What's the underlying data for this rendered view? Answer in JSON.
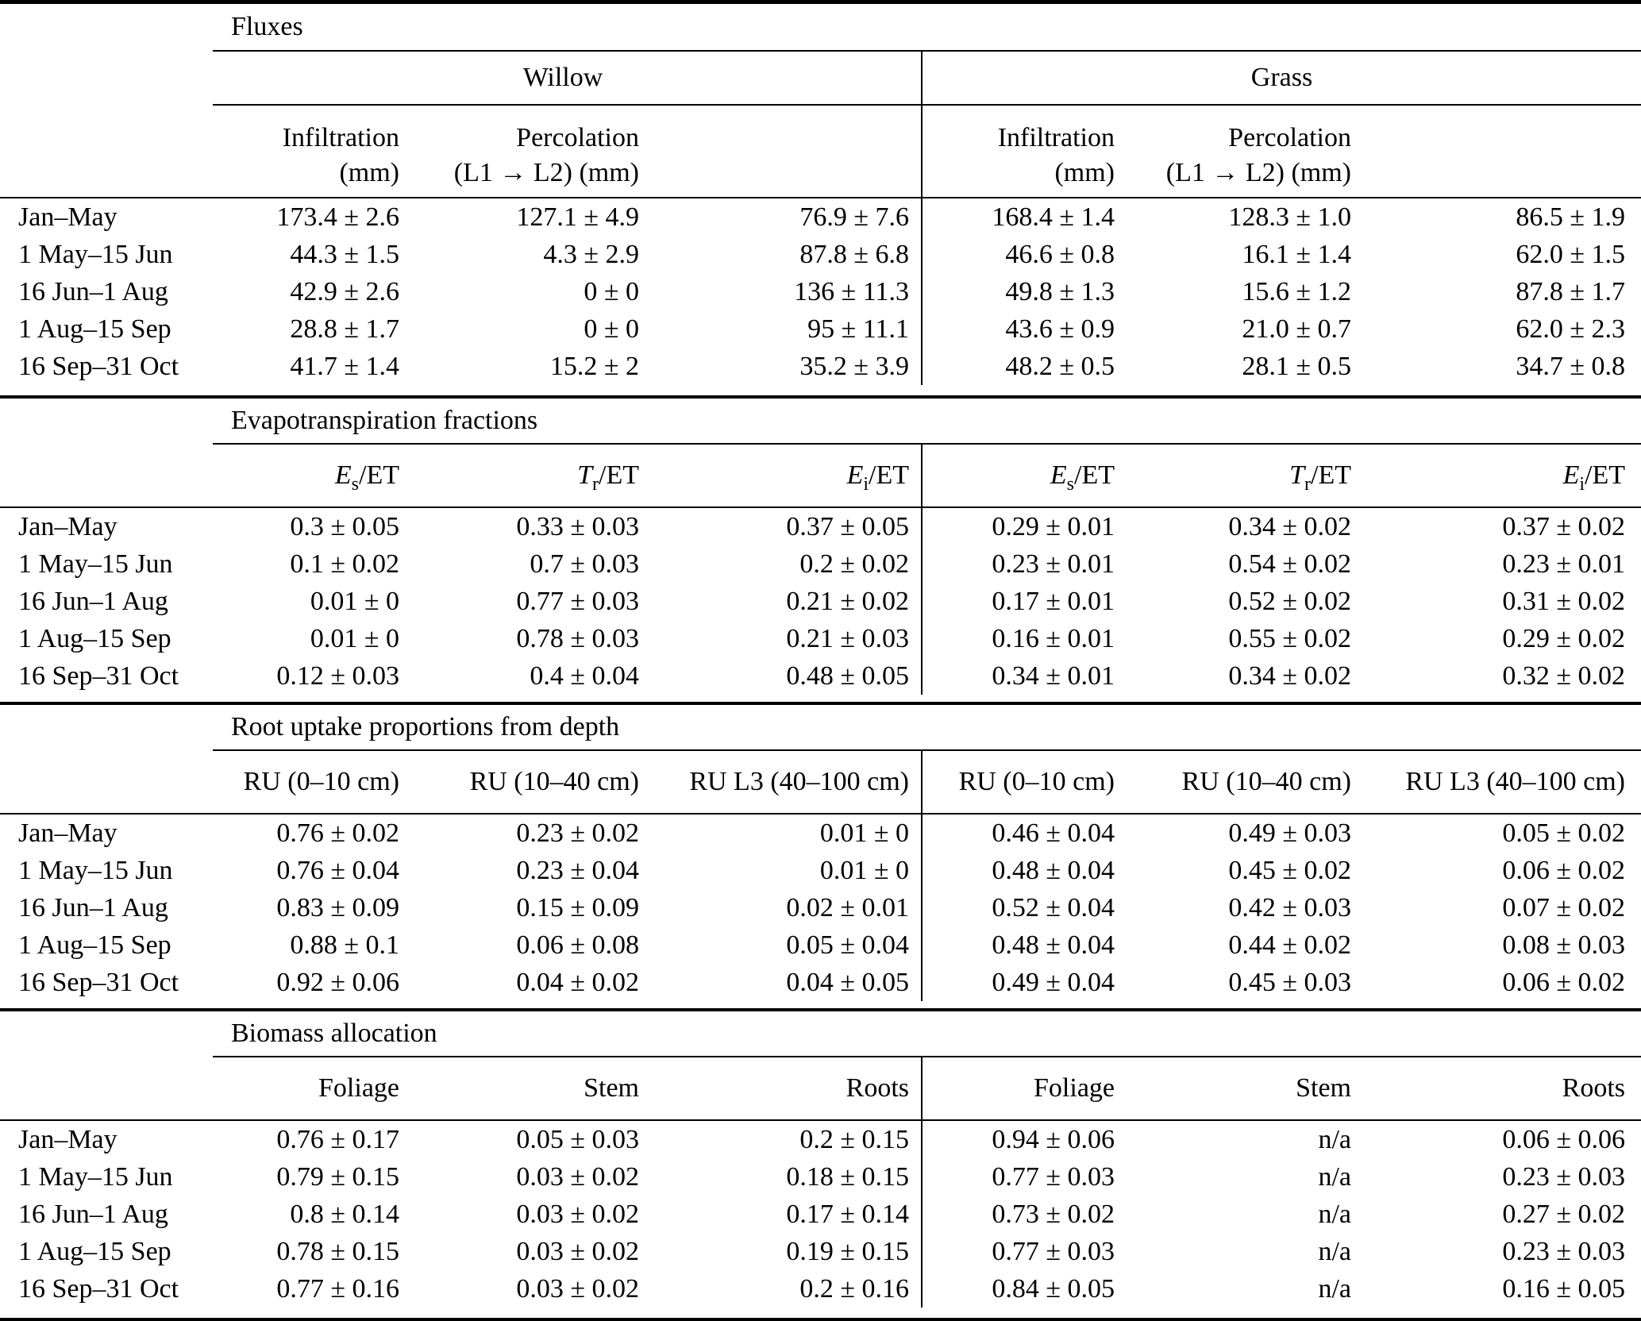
{
  "table": {
    "colors": {
      "text": "#000000",
      "background": "#ffffff",
      "rule": "#000000"
    },
    "group_headers": {
      "willow": "Willow",
      "grass": "Grass"
    },
    "row_labels": [
      "Jan–May",
      "1 May–15 Jun",
      "16 Jun–1 Aug",
      "1 Aug–15 Sep",
      "16 Sep–31 Oct"
    ],
    "sections": [
      {
        "title": "Fluxes",
        "headers": {
          "willow": [
            "Infiltration\n(mm)",
            "Percolation\n(L1 → L2) (mm)",
            ""
          ],
          "grass": [
            "Infiltration\n(mm)",
            "Percolation\n(L1 → L2) (mm)",
            ""
          ]
        },
        "rows": [
          {
            "label": "Jan–May",
            "willow": [
              "173.4 ± 2.6",
              "127.1 ± 4.9",
              "76.9 ± 7.6"
            ],
            "grass": [
              "168.4 ± 1.4",
              "128.3 ± 1.0",
              "86.5 ± 1.9"
            ]
          },
          {
            "label": "1 May–15 Jun",
            "willow": [
              "44.3 ± 1.5",
              "4.3 ± 2.9",
              "87.8 ± 6.8"
            ],
            "grass": [
              "46.6 ± 0.8",
              "16.1 ± 1.4",
              "62.0 ± 1.5"
            ]
          },
          {
            "label": "16 Jun–1 Aug",
            "willow": [
              "42.9 ± 2.6",
              "0 ± 0",
              "136 ± 11.3"
            ],
            "grass": [
              "49.8 ± 1.3",
              "15.6 ± 1.2",
              "87.8 ± 1.7"
            ]
          },
          {
            "label": "1 Aug–15 Sep",
            "willow": [
              "28.8 ± 1.7",
              "0 ± 0",
              "95 ± 11.1"
            ],
            "grass": [
              "43.6 ± 0.9",
              "21.0 ± 0.7",
              "62.0 ± 2.3"
            ]
          },
          {
            "label": "16 Sep–31 Oct",
            "willow": [
              "41.7 ± 1.4",
              "15.2 ± 2",
              "35.2 ± 3.9"
            ],
            "grass": [
              "48.2 ± 0.5",
              "28.1 ± 0.5",
              "34.7 ± 0.8"
            ]
          }
        ]
      },
      {
        "title": "Evapotranspiration fractions",
        "math_headers": [
          {
            "var": "E",
            "sub": "s",
            "rest": "/ET"
          },
          {
            "var": "T",
            "sub": "r",
            "rest": "/ET"
          },
          {
            "var": "E",
            "sub": "i",
            "rest": "/ET"
          }
        ],
        "rows": [
          {
            "label": "Jan–May",
            "willow": [
              "0.3 ± 0.05",
              "0.33 ± 0.03",
              "0.37 ± 0.05"
            ],
            "grass": [
              "0.29 ± 0.01",
              "0.34 ± 0.02",
              "0.37 ± 0.02"
            ]
          },
          {
            "label": "1 May–15 Jun",
            "willow": [
              "0.1 ± 0.02",
              "0.7 ± 0.03",
              "0.2 ± 0.02"
            ],
            "grass": [
              "0.23 ± 0.01",
              "0.54 ± 0.02",
              "0.23 ± 0.01"
            ]
          },
          {
            "label": "16 Jun–1 Aug",
            "willow": [
              "0.01 ± 0",
              "0.77 ± 0.03",
              "0.21 ± 0.02"
            ],
            "grass": [
              "0.17 ± 0.01",
              "0.52 ± 0.02",
              "0.31 ± 0.02"
            ]
          },
          {
            "label": "1 Aug–15 Sep",
            "willow": [
              "0.01 ± 0",
              "0.78 ± 0.03",
              "0.21 ± 0.03"
            ],
            "grass": [
              "0.16 ± 0.01",
              "0.55 ± 0.02",
              "0.29 ± 0.02"
            ]
          },
          {
            "label": "16 Sep–31 Oct",
            "willow": [
              "0.12 ± 0.03",
              "0.4 ± 0.04",
              "0.48 ± 0.05"
            ],
            "grass": [
              "0.34 ± 0.01",
              "0.34 ± 0.02",
              "0.32 ± 0.02"
            ]
          }
        ]
      },
      {
        "title": "Root uptake proportions from depth",
        "headers": {
          "willow": [
            "RU (0–10 cm)",
            "RU (10–40 cm)",
            "RU L3 (40–100 cm)"
          ],
          "grass": [
            "RU (0–10 cm)",
            "RU (10–40 cm)",
            "RU L3 (40–100 cm)"
          ]
        },
        "rows": [
          {
            "label": "Jan–May",
            "willow": [
              "0.76 ± 0.02",
              "0.23 ± 0.02",
              "0.01 ± 0"
            ],
            "grass": [
              "0.46 ± 0.04",
              "0.49 ± 0.03",
              "0.05 ± 0.02"
            ]
          },
          {
            "label": "1 May–15 Jun",
            "willow": [
              "0.76 ± 0.04",
              "0.23 ± 0.04",
              "0.01 ± 0"
            ],
            "grass": [
              "0.48 ± 0.04",
              "0.45 ± 0.02",
              "0.06 ± 0.02"
            ]
          },
          {
            "label": "16 Jun–1 Aug",
            "willow": [
              "0.83 ± 0.09",
              "0.15 ± 0.09",
              "0.02 ± 0.01"
            ],
            "grass": [
              "0.52 ± 0.04",
              "0.42 ± 0.03",
              "0.07 ± 0.02"
            ]
          },
          {
            "label": "1 Aug–15 Sep",
            "willow": [
              "0.88 ± 0.1",
              "0.06 ± 0.08",
              "0.05 ± 0.04"
            ],
            "grass": [
              "0.48 ± 0.04",
              "0.44 ± 0.02",
              "0.08 ± 0.03"
            ]
          },
          {
            "label": "16 Sep–31 Oct",
            "willow": [
              "0.92 ± 0.06",
              "0.04 ± 0.02",
              "0.04 ± 0.05"
            ],
            "grass": [
              "0.49 ± 0.04",
              "0.45 ± 0.03",
              "0.06 ± 0.02"
            ]
          }
        ]
      },
      {
        "title": "Biomass allocation",
        "headers": {
          "willow": [
            "Foliage",
            "Stem",
            "Roots"
          ],
          "grass": [
            "Foliage",
            "Stem",
            "Roots"
          ]
        },
        "rows": [
          {
            "label": "Jan–May",
            "willow": [
              "0.76 ± 0.17",
              "0.05 ± 0.03",
              "0.2 ± 0.15"
            ],
            "grass": [
              "0.94 ± 0.06",
              "n/a",
              "0.06 ± 0.06"
            ]
          },
          {
            "label": "1 May–15 Jun",
            "willow": [
              "0.79 ± 0.15",
              "0.03 ± 0.02",
              "0.18 ± 0.15"
            ],
            "grass": [
              "0.77 ± 0.03",
              "n/a",
              "0.23 ± 0.03"
            ]
          },
          {
            "label": "16 Jun–1 Aug",
            "willow": [
              "0.8 ± 0.14",
              "0.03 ± 0.02",
              "0.17 ± 0.14"
            ],
            "grass": [
              "0.73 ± 0.02",
              "n/a",
              "0.27 ± 0.02"
            ]
          },
          {
            "label": "1 Aug–15 Sep",
            "willow": [
              "0.78 ± 0.15",
              "0.03 ± 0.02",
              "0.19 ± 0.15"
            ],
            "grass": [
              "0.77 ± 0.03",
              "n/a",
              "0.23 ± 0.03"
            ]
          },
          {
            "label": "16 Sep–31 Oct",
            "willow": [
              "0.77 ± 0.16",
              "0.03 ± 0.02",
              "0.2 ± 0.16"
            ],
            "grass": [
              "0.84 ± 0.05",
              "n/a",
              "0.16 ± 0.05"
            ]
          }
        ]
      }
    ]
  }
}
